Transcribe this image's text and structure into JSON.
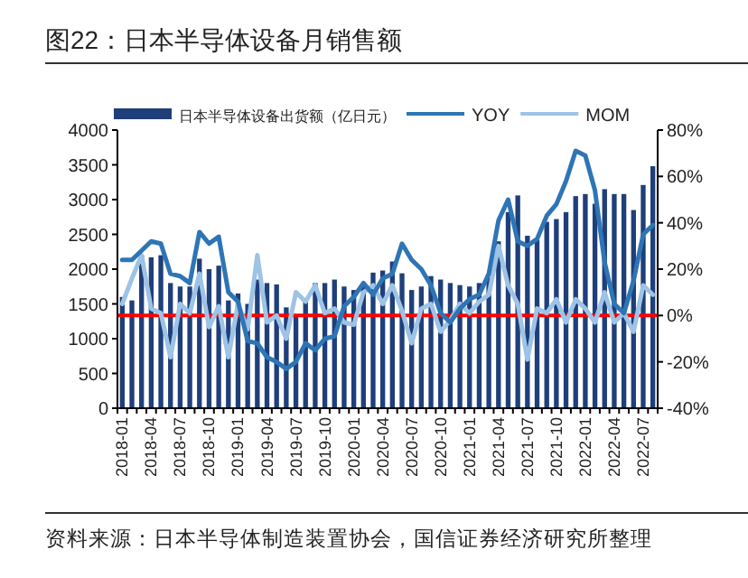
{
  "chart_data": {
    "type": "bar",
    "title": "图22：日本半导体设备月销售额",
    "annotations": [
      "资料来源：日本半导体制造装置协会，国信证券经济研究所整理"
    ],
    "categories": [
      "2018-01",
      null,
      null,
      "2018-04",
      null,
      null,
      "2018-07",
      null,
      null,
      "2018-10",
      null,
      null,
      "2019-01",
      null,
      null,
      "2019-04",
      null,
      null,
      "2019-07",
      null,
      null,
      "2019-10",
      null,
      null,
      "2020-01",
      null,
      null,
      "2020-04",
      null,
      null,
      "2020-07",
      null,
      null,
      "2020-10",
      null,
      null,
      "2021-01",
      null,
      null,
      "2021-04",
      null,
      null,
      "2021-07",
      null,
      null,
      "2021-10",
      null,
      null,
      "2022-01",
      null,
      null,
      "2022-04",
      null,
      null,
      "2022-07",
      null
    ],
    "series": [
      {
        "name": "日本半导体设备出货额（亿日元）",
        "color": "#1f3f7a",
        "values": [
          1600,
          1550,
          2200,
          2170,
          2200,
          1800,
          1750,
          1750,
          2150,
          2000,
          2050,
          1550,
          1650,
          1500,
          1850,
          1800,
          1780,
          1450,
          1350,
          1550,
          1800,
          1800,
          1850,
          1750,
          1700,
          1800,
          1950,
          1980,
          2110,
          1940,
          1700,
          1750,
          1900,
          1850,
          1800,
          1770,
          1750,
          1800,
          1880,
          2400,
          2820,
          3060,
          2480,
          2420,
          2680,
          2720,
          2820,
          3050,
          3080,
          2940,
          3150,
          3080,
          3080,
          2850,
          3210,
          3480
        ]
      },
      {
        "name": "YOY",
        "type": "line",
        "axis": "y2",
        "color": "#2e75b6",
        "values": [
          24,
          24,
          28,
          32,
          31,
          18,
          17,
          14,
          36,
          31,
          34,
          10,
          6,
          -11,
          -12,
          -18,
          -20,
          -23,
          -20,
          -12,
          -15,
          -10,
          -9,
          4,
          8,
          14,
          9,
          16,
          18,
          31,
          24,
          20,
          13,
          1,
          -3,
          3,
          7,
          9,
          18,
          41,
          50,
          32,
          30,
          33,
          43,
          48,
          58,
          71,
          69,
          54,
          23,
          5,
          1,
          15,
          35,
          39
        ]
      },
      {
        "name": "MOM",
        "type": "line",
        "axis": "y2",
        "color": "#9dc3e6",
        "values": [
          5,
          16,
          26,
          3,
          1,
          -18,
          5,
          1,
          18,
          -5,
          4,
          -18,
          5,
          -6,
          26,
          -3,
          0,
          -10,
          10,
          6,
          13,
          1,
          3,
          -3,
          -4,
          10,
          13,
          5,
          13,
          2,
          -12,
          3,
          5,
          -7,
          -2,
          5,
          1,
          6,
          9,
          30,
          13,
          5,
          -19,
          3,
          1,
          7,
          -3,
          7,
          3,
          -3,
          10,
          -3,
          1,
          -7,
          13,
          9
        ]
      }
    ],
    "ylim": [
      0,
      4000
    ],
    "yticks": [
      0,
      500,
      1000,
      1500,
      2000,
      2500,
      3000,
      3500,
      4000
    ],
    "y2lim": [
      -40,
      80
    ],
    "y2ticks": [
      {
        "value": -40,
        "label": "-40%"
      },
      {
        "value": -20,
        "label": "-20%"
      },
      {
        "value": 0,
        "label": "0%"
      },
      {
        "value": 20,
        "label": "20%"
      },
      {
        "value": 40,
        "label": "40%"
      },
      {
        "value": 60,
        "label": "60%"
      },
      {
        "value": 80,
        "label": "80%"
      }
    ],
    "ref_lines": [
      {
        "axis": "y2",
        "value": 0,
        "color": "#ff0000"
      }
    ],
    "legend": "top",
    "grid": false
  }
}
